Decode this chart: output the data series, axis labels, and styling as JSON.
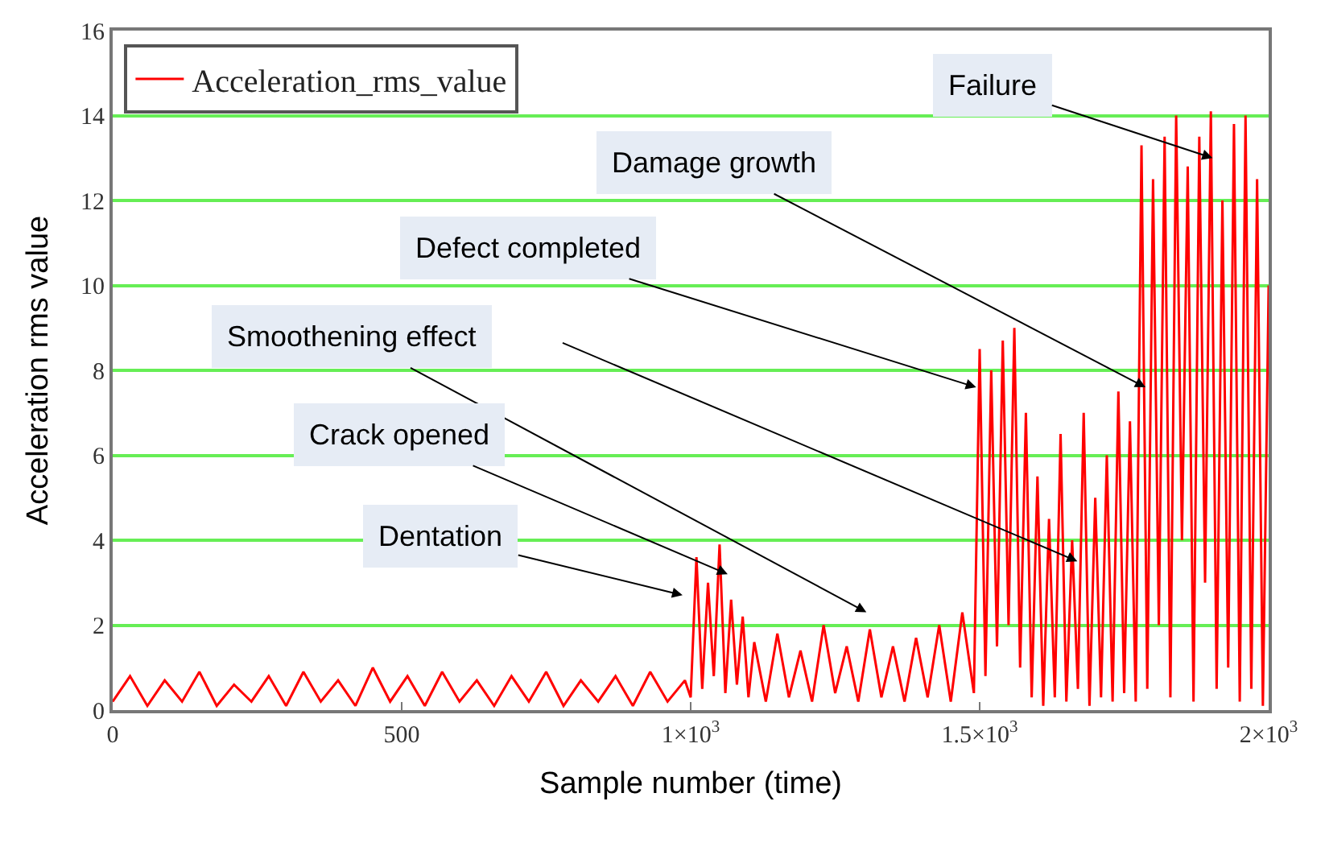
{
  "chart_data": {
    "type": "line",
    "xlabel": "Sample number (time)",
    "ylabel": "Acceleration rms value",
    "xlim": [
      0,
      2000
    ],
    "ylim": [
      0,
      16
    ],
    "xticks": [
      0,
      500,
      {
        "value": 1000,
        "label": "1×10$^{3}$"
      },
      {
        "value": 1500,
        "label": "1.5×10$^{3}$"
      },
      {
        "value": 2000,
        "label": "2×10$^{3}$"
      }
    ],
    "yticks": [
      0,
      2,
      4,
      6,
      8,
      10,
      12,
      14,
      16
    ],
    "grid": "y",
    "legend": "top left",
    "marker": "none",
    "line_style": "solid",
    "series": [
      {
        "name": "Acceleration_rms_value",
        "color": "#ff0000",
        "x": [
          0,
          30,
          60,
          90,
          120,
          150,
          180,
          210,
          240,
          270,
          300,
          330,
          360,
          390,
          420,
          450,
          480,
          510,
          540,
          570,
          600,
          630,
          660,
          690,
          720,
          750,
          780,
          810,
          840,
          870,
          900,
          930,
          960,
          990,
          1000,
          1010,
          1020,
          1030,
          1040,
          1050,
          1060,
          1070,
          1080,
          1090,
          1100,
          1110,
          1130,
          1150,
          1170,
          1190,
          1210,
          1230,
          1250,
          1270,
          1290,
          1310,
          1330,
          1350,
          1370,
          1390,
          1410,
          1430,
          1450,
          1470,
          1490,
          1500,
          1510,
          1520,
          1530,
          1540,
          1550,
          1560,
          1570,
          1580,
          1590,
          1600,
          1610,
          1620,
          1630,
          1640,
          1650,
          1660,
          1670,
          1680,
          1690,
          1700,
          1710,
          1720,
          1730,
          1740,
          1750,
          1760,
          1770,
          1780,
          1790,
          1800,
          1810,
          1820,
          1830,
          1840,
          1850,
          1860,
          1870,
          1880,
          1890,
          1900,
          1910,
          1920,
          1930,
          1940,
          1950,
          1960,
          1970,
          1980,
          1990,
          2000
        ],
        "values": [
          0.2,
          0.8,
          0.1,
          0.7,
          0.2,
          0.9,
          0.1,
          0.6,
          0.2,
          0.8,
          0.1,
          0.9,
          0.2,
          0.7,
          0.1,
          1.0,
          0.2,
          0.8,
          0.1,
          0.9,
          0.2,
          0.7,
          0.1,
          0.8,
          0.2,
          0.9,
          0.1,
          0.7,
          0.2,
          0.8,
          0.1,
          0.9,
          0.2,
          0.7,
          0.3,
          3.6,
          0.5,
          3.0,
          0.8,
          3.9,
          0.4,
          2.6,
          0.6,
          2.2,
          0.3,
          1.6,
          0.2,
          1.8,
          0.3,
          1.4,
          0.2,
          2.0,
          0.4,
          1.5,
          0.2,
          1.9,
          0.3,
          1.5,
          0.2,
          1.7,
          0.3,
          2.0,
          0.2,
          2.3,
          0.4,
          8.5,
          0.8,
          8.0,
          1.5,
          8.7,
          2.0,
          9.0,
          1.0,
          7.0,
          0.3,
          5.5,
          0.1,
          4.5,
          0.3,
          6.5,
          0.2,
          4.0,
          0.5,
          7.0,
          0.1,
          5.0,
          0.3,
          6.0,
          0.2,
          7.5,
          0.4,
          6.8,
          0.2,
          13.3,
          0.5,
          12.5,
          2.0,
          13.5,
          0.3,
          14.0,
          4.0,
          12.8,
          0.2,
          13.5,
          3.0,
          14.1,
          0.5,
          12.0,
          1.0,
          13.8,
          0.2,
          14.0,
          0.5,
          12.5,
          0.1,
          10.0
        ]
      }
    ],
    "annotations": [
      {
        "text": "Failure",
        "x": 1903,
        "y": 13.0
      },
      {
        "text": "Damage growth",
        "x": 1787,
        "y": 7.6
      },
      {
        "text": "Defect completed",
        "x": 1494,
        "y": 7.6
      },
      "Smoothening effect",
      {
        "text": "Crack opened",
        "x": 1064,
        "y": 3.2
      },
      "Dentation"
    ]
  }
}
